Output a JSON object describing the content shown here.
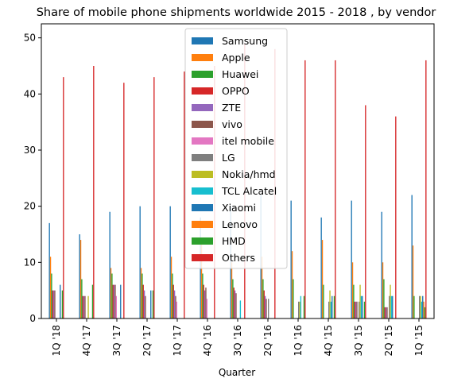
{
  "chart_data": {
    "type": "bar",
    "title": "Share of mobile phone shipments worldwide 2015 - 2018 , by vendor",
    "xlabel": "Quarter",
    "ylabel": "",
    "ylim": [
      0,
      52.5
    ],
    "yticks": [
      0,
      10,
      20,
      30,
      40,
      50
    ],
    "grid": false,
    "legend_position": "top-center",
    "categories": [
      "1Q '18",
      "4Q '17",
      "3Q '17",
      "2Q '17",
      "1Q '17",
      "4Q '16",
      "3Q '16",
      "2Q '16",
      "1Q '16",
      "4Q '15",
      "3Q '15",
      "2Q '15",
      "1Q '15"
    ],
    "series": [
      {
        "name": "Samsung",
        "color": "#1f77b4",
        "values": [
          17,
          15,
          19,
          20,
          20,
          18,
          20,
          22,
          21,
          18,
          21,
          19,
          22
        ]
      },
      {
        "name": "Apple",
        "color": "#ff7f0e",
        "values": [
          11,
          14,
          9,
          9,
          11,
          14,
          10,
          11,
          12,
          14,
          10,
          10,
          13
        ]
      },
      {
        "name": "Huawei",
        "color": "#2ca02c",
        "values": [
          8,
          7,
          8,
          8,
          8,
          8,
          7,
          7,
          7,
          6,
          6,
          7,
          4
        ]
      },
      {
        "name": "OPPO",
        "color": "#d62728",
        "values": [
          5,
          4,
          6,
          6,
          6,
          6,
          5.5,
          5,
          0,
          0,
          3,
          2,
          0
        ]
      },
      {
        "name": "ZTE",
        "color": "#9467bd",
        "values": [
          5,
          4,
          6,
          5,
          5,
          5,
          5,
          4,
          0,
          0,
          3,
          2,
          0
        ]
      },
      {
        "name": "vivo",
        "color": "#8c564b",
        "values": [
          5,
          4,
          6,
          4,
          4,
          5.5,
          4.5,
          3.5,
          0,
          0,
          3,
          2,
          0
        ]
      },
      {
        "name": "itel mobile",
        "color": "#e377c2",
        "values": [
          0,
          0,
          4,
          0,
          3,
          3.5,
          0,
          0,
          0,
          0,
          0,
          0,
          0
        ]
      },
      {
        "name": "LG",
        "color": "#7f7f7f",
        "values": [
          0,
          0,
          0,
          0,
          0,
          0,
          0,
          3.5,
          3,
          3,
          3,
          4,
          4
        ]
      },
      {
        "name": "Nokia/hmd",
        "color": "#bcbd22",
        "values": [
          0,
          4,
          0,
          0,
          0,
          0,
          0,
          0,
          3,
          5,
          6,
          6,
          4
        ]
      },
      {
        "name": "TCL Alcatel",
        "color": "#17becf",
        "values": [
          0,
          0,
          0,
          0,
          0,
          0,
          3.2,
          0,
          4,
          3,
          4,
          4,
          3
        ]
      },
      {
        "name": "Xiaomi",
        "color": "#1f77b4",
        "values": [
          6,
          0,
          6,
          5,
          0,
          0,
          0,
          0,
          0,
          4,
          4,
          4,
          4
        ]
      },
      {
        "name": "Lenovo",
        "color": "#ff7f0e",
        "values": [
          0,
          0,
          0,
          0,
          0,
          0,
          0,
          0,
          0,
          0,
          0,
          0,
          3
        ]
      },
      {
        "name": "HMD",
        "color": "#2ca02c",
        "values": [
          5,
          6,
          0,
          5,
          0,
          0,
          0,
          0,
          4,
          4,
          3,
          0,
          2
        ]
      },
      {
        "name": "Others",
        "color": "#d62728",
        "values": [
          43,
          45,
          42,
          43,
          44,
          45,
          49,
          48,
          46,
          46,
          38,
          36,
          46
        ]
      }
    ]
  }
}
